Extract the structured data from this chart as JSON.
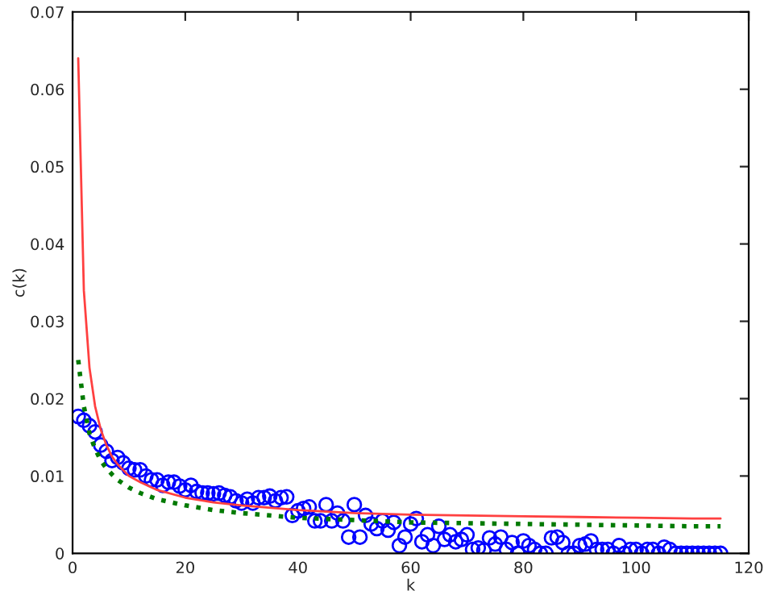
{
  "chart_data": {
    "type": "scatter",
    "xlabel": "k",
    "ylabel": "c(k)",
    "xlim": [
      0,
      120
    ],
    "ylim": [
      0,
      0.07
    ],
    "xticks": [
      0,
      20,
      40,
      60,
      80,
      100,
      120
    ],
    "yticks": [
      0,
      0.01,
      0.02,
      0.03,
      0.04,
      0.05,
      0.06,
      0.07
    ],
    "grid": false,
    "legend": false,
    "series": [
      {
        "type": "line",
        "color": "#ff4040",
        "line_style": "solid",
        "marker": "none",
        "x": [
          1,
          2,
          3,
          4,
          5,
          6,
          7,
          8,
          10,
          12,
          15,
          20,
          25,
          30,
          40,
          50,
          60,
          70,
          80,
          90,
          100,
          110,
          115
        ],
        "values": [
          0.064,
          0.034,
          0.024,
          0.019,
          0.016,
          0.014,
          0.0125,
          0.0115,
          0.01,
          0.0092,
          0.0082,
          0.0072,
          0.0066,
          0.0062,
          0.0056,
          0.0052,
          0.005,
          0.0049,
          0.0048,
          0.0047,
          0.0046,
          0.0045,
          0.0045
        ]
      },
      {
        "type": "line",
        "color": "#007a00",
        "line_style": "dotted",
        "marker": "none",
        "x": [
          1,
          2,
          3,
          4,
          5,
          6,
          7,
          8,
          10,
          12,
          15,
          20,
          25,
          30,
          35,
          40,
          50,
          60,
          70,
          80,
          90,
          100,
          110,
          115
        ],
        "values": [
          0.025,
          0.019,
          0.0155,
          0.0135,
          0.012,
          0.011,
          0.0102,
          0.0095,
          0.0085,
          0.0078,
          0.007,
          0.0062,
          0.0056,
          0.0052,
          0.0049,
          0.0046,
          0.0043,
          0.004,
          0.0039,
          0.0038,
          0.0037,
          0.0036,
          0.0035,
          0.0035
        ]
      },
      {
        "color": "#0000ff",
        "marker": "circle",
        "x": [
          1,
          2,
          3,
          4,
          5,
          6,
          7,
          8,
          9,
          10,
          11,
          12,
          13,
          14,
          15,
          16,
          17,
          18,
          19,
          20,
          21,
          22,
          23,
          24,
          25,
          26,
          27,
          28,
          29,
          30,
          31,
          32,
          33,
          34,
          35,
          36,
          37,
          38,
          39,
          40,
          41,
          42,
          43,
          44,
          45,
          46,
          47,
          48,
          49,
          50,
          51,
          52,
          53,
          54,
          55,
          56,
          57,
          58,
          59,
          60,
          61,
          62,
          63,
          64,
          65,
          66,
          67,
          68,
          69,
          70,
          71,
          72,
          73,
          74,
          75,
          76,
          77,
          78,
          79,
          80,
          81,
          82,
          83,
          84,
          85,
          86,
          87,
          88,
          89,
          90,
          91,
          92,
          93,
          94,
          95,
          96,
          97,
          98,
          99,
          100,
          101,
          102,
          103,
          104,
          105,
          106,
          107,
          108,
          109,
          110,
          111,
          112,
          113,
          114,
          115
        ],
        "values": [
          0.0177,
          0.0172,
          0.0165,
          0.0157,
          0.014,
          0.0132,
          0.012,
          0.0124,
          0.0117,
          0.011,
          0.0108,
          0.0108,
          0.01,
          0.0095,
          0.0095,
          0.0088,
          0.0092,
          0.0092,
          0.0087,
          0.0082,
          0.0088,
          0.008,
          0.0078,
          0.0078,
          0.0077,
          0.0078,
          0.0075,
          0.0073,
          0.0068,
          0.0065,
          0.007,
          0.0065,
          0.0072,
          0.0072,
          0.0074,
          0.0068,
          0.0072,
          0.0073,
          0.0049,
          0.0055,
          0.0058,
          0.006,
          0.0042,
          0.0042,
          0.0063,
          0.0042,
          0.0052,
          0.0042,
          0.0021,
          0.0063,
          0.0021,
          0.0049,
          0.0038,
          0.0032,
          0.0042,
          0.003,
          0.004,
          0.001,
          0.0021,
          0.0038,
          0.0045,
          0.0015,
          0.0024,
          0.001,
          0.0035,
          0.0018,
          0.0024,
          0.0015,
          0.0018,
          0.0024,
          0.0005,
          0.0007,
          0.0004,
          0.002,
          0.0012,
          0.0021,
          0.0005,
          0.0014,
          0.0,
          0.0016,
          0.001,
          0.0005,
          0.0,
          0.0,
          0.002,
          0.0021,
          0.0014,
          0.0,
          0.0,
          0.001,
          0.0012,
          0.0016,
          0.0005,
          0.0005,
          0.0005,
          0.0,
          0.001,
          0.0,
          0.0005,
          0.0005,
          0.0,
          0.0005,
          0.0005,
          0.0,
          0.0008,
          0.0005,
          0.0,
          0.0,
          0.0,
          0.0,
          0.0,
          0.0,
          0.0,
          0.0,
          0.0
        ]
      }
    ]
  }
}
